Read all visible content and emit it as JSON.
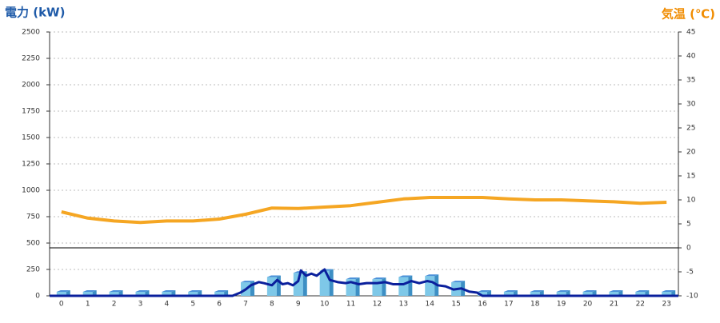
{
  "chart_data": {
    "type": "combo",
    "title": "電力 (kW)",
    "y2_title": "気温 (℃)",
    "xlim": [
      -0.45,
      23.45
    ],
    "xticks": [
      0,
      1,
      2,
      3,
      4,
      5,
      6,
      7,
      8,
      9,
      10,
      11,
      12,
      13,
      14,
      15,
      16,
      17,
      18,
      19,
      20,
      21,
      22,
      23
    ],
    "ylim": [
      0,
      2500
    ],
    "yticks": [
      0,
      250,
      500,
      750,
      1000,
      1250,
      1500,
      1750,
      2000,
      2250,
      2500
    ],
    "y2lim": [
      -10,
      45
    ],
    "y2ticks": [
      -10,
      -5,
      0,
      5,
      10,
      15,
      20,
      25,
      30,
      35,
      40,
      45
    ],
    "grid": true,
    "series": [
      {
        "type": "bar",
        "color": "#7ec8e8",
        "x": [
          0,
          1,
          2,
          3,
          4,
          5,
          6,
          7,
          8,
          9,
          10,
          11,
          12,
          13,
          14,
          15,
          16,
          17,
          18,
          19,
          20,
          21,
          22,
          23
        ],
        "values": [
          0,
          0,
          0,
          0,
          0,
          0,
          0,
          90,
          140,
          180,
          200,
          120,
          120,
          140,
          150,
          90,
          0,
          0,
          0,
          0,
          0,
          0,
          0,
          0
        ]
      },
      {
        "type": "line",
        "color": "#0a1f9c",
        "x": [
          -0.45,
          6.5,
          6.8,
          7.0,
          7.2,
          7.5,
          7.7,
          8.0,
          8.2,
          8.4,
          8.6,
          8.8,
          9.0,
          9.1,
          9.3,
          9.5,
          9.7,
          9.9,
          10.0,
          10.2,
          10.5,
          10.8,
          11.0,
          11.3,
          11.6,
          12.0,
          12.3,
          12.6,
          13.0,
          13.3,
          13.6,
          13.9,
          14.1,
          14.3,
          14.6,
          14.9,
          15.2,
          15.5,
          15.8,
          16.0,
          23.45
        ],
        "values": [
          0,
          0,
          30,
          60,
          100,
          130,
          120,
          100,
          150,
          110,
          120,
          100,
          140,
          240,
          190,
          210,
          190,
          230,
          250,
          150,
          130,
          120,
          130,
          110,
          120,
          120,
          130,
          110,
          110,
          140,
          120,
          140,
          130,
          100,
          90,
          60,
          70,
          40,
          30,
          0,
          0
        ]
      },
      {
        "type": "line",
        "axis": "y2",
        "color": "#f5a623",
        "x": [
          0,
          1,
          2,
          3,
          4,
          5,
          6,
          7,
          8,
          9,
          10,
          11,
          12,
          13,
          14,
          15,
          16,
          17,
          18,
          19,
          20,
          21,
          22,
          23
        ],
        "values": [
          7.5,
          6.2,
          5.6,
          5.3,
          5.6,
          5.6,
          6,
          7,
          8.3,
          8.2,
          8.5,
          8.8,
          9.5,
          10.2,
          10.5,
          10.5,
          10.5,
          10.2,
          10,
          10,
          9.8,
          9.6,
          9.3,
          9.5
        ]
      }
    ]
  }
}
